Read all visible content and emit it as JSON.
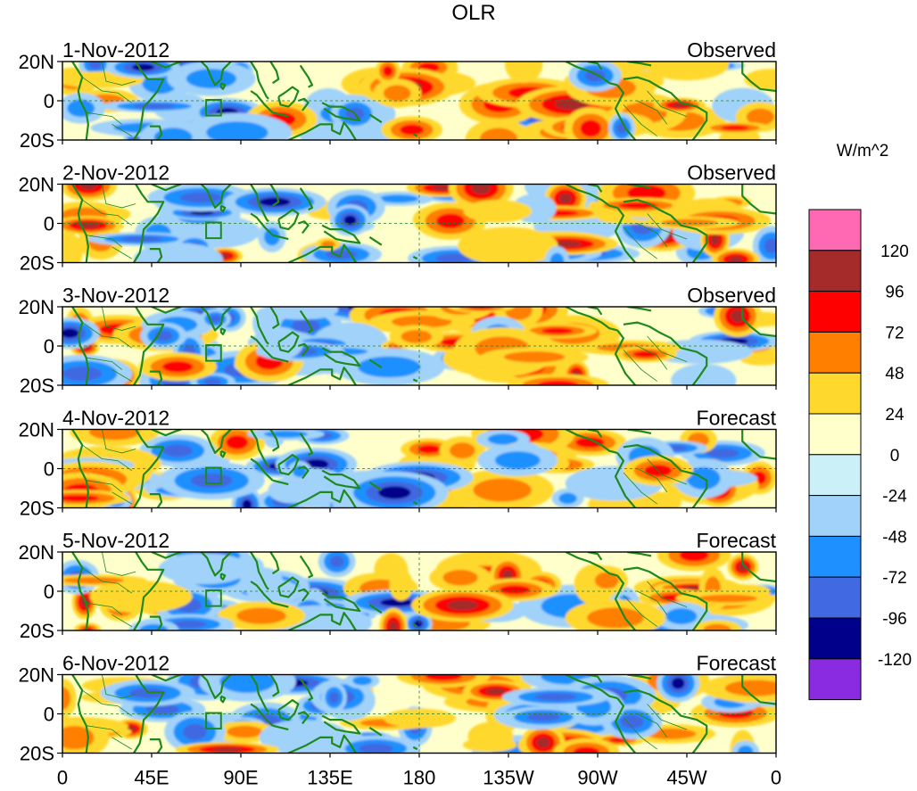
{
  "chart_data": {
    "type": "heatmap",
    "title": "OLR",
    "units": "W/m^2",
    "y_tick_labels": [
      "20N",
      "0",
      "20S"
    ],
    "ylim": [
      -20,
      20
    ],
    "x_tick_labels": [
      "0",
      "45E",
      "90E",
      "135E",
      "180",
      "135W",
      "90W",
      "45W",
      "0"
    ],
    "xlim": [
      0,
      360
    ],
    "colorbar": {
      "levels": [
        "120",
        "96",
        "72",
        "48",
        "24",
        "0",
        "-24",
        "-48",
        "-72",
        "-96",
        "-120"
      ],
      "colors": [
        "#ff69b4",
        "#a52a2a",
        "#ff0000",
        "#ff7f00",
        "#ffd82e",
        "#ffffcc",
        "#ccf0f8",
        "#a0d2fa",
        "#1e90ff",
        "#4169e1",
        "#00008b",
        "#8a2be2"
      ]
    },
    "panels": [
      {
        "date": "1-Nov-2012",
        "label": "Observed"
      },
      {
        "date": "2-Nov-2012",
        "label": "Observed"
      },
      {
        "date": "3-Nov-2012",
        "label": "Observed"
      },
      {
        "date": "4-Nov-2012",
        "label": "Forecast"
      },
      {
        "date": "5-Nov-2012",
        "label": "Forecast"
      },
      {
        "date": "6-Nov-2012",
        "label": "Forecast"
      }
    ]
  }
}
